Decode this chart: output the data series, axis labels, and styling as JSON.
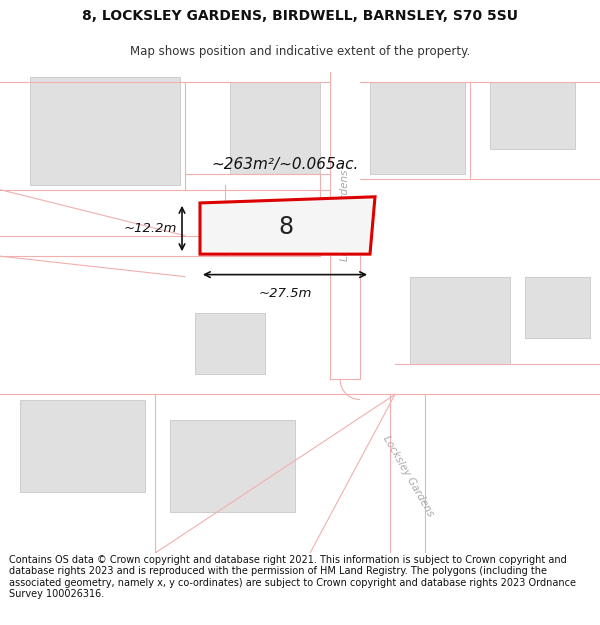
{
  "title_line1": "8, LOCKSLEY GARDENS, BIRDWELL, BARNSLEY, S70 5SU",
  "title_line2": "Map shows position and indicative extent of the property.",
  "footer_text": "Contains OS data © Crown copyright and database right 2021. This information is subject to Crown copyright and database rights 2023 and is reproduced with the permission of HM Land Registry. The polygons (including the associated geometry, namely x, y co-ordinates) are subject to Crown copyright and database rights 2023 Ordnance Survey 100026316.",
  "map_bg": "#f2f2f2",
  "road_bg": "#ffffff",
  "plot_outline_color": "#dd0000",
  "plot_fill_color": "#f0f0f0",
  "building_color": "#e0e0e0",
  "building_edge": "#c0c0c0",
  "street_line_color": "#f0b0b0",
  "street_label_color": "#aaaaaa",
  "dim_label": "~263m²/~0.065ac.",
  "width_label": "~27.5m",
  "height_label": "~12.2m",
  "plot_number": "8"
}
